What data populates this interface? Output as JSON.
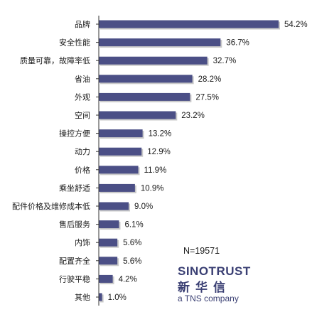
{
  "chart_data": {
    "type": "bar",
    "orientation": "horizontal",
    "categories": [
      "品牌",
      "安全性能",
      "质量可靠，故障率低",
      "省油",
      "外观",
      "空间",
      "操控方便",
      "动力",
      "价格",
      "乘坐舒适",
      "配件价格及维修成本低",
      "售后服务",
      "内饰",
      "配置齐全",
      "行驶平稳",
      "其他"
    ],
    "values": [
      54.2,
      36.7,
      32.7,
      28.2,
      27.5,
      23.2,
      13.2,
      12.9,
      11.9,
      10.9,
      9.0,
      6.1,
      5.6,
      5.6,
      4.2,
      1.0
    ],
    "value_labels": [
      "54.2%",
      "36.7%",
      "32.7%",
      "28.2%",
      "27.5%",
      "23.2%",
      "13.2%",
      "12.9%",
      "11.9%",
      "10.9%",
      "9.0%",
      "6.1%",
      "5.6%",
      "5.6%",
      "4.2%",
      "1.0%"
    ],
    "xlim": [
      0,
      54.2
    ],
    "grid": false,
    "legend": "none",
    "bar_color": "#4b4f86"
  },
  "annotation": {
    "sample_size": "N=19571"
  },
  "branding": {
    "name": "SINOTRUST",
    "name_cn": "新华信",
    "tagline": "a TNS company",
    "color": "#3a3f73"
  }
}
